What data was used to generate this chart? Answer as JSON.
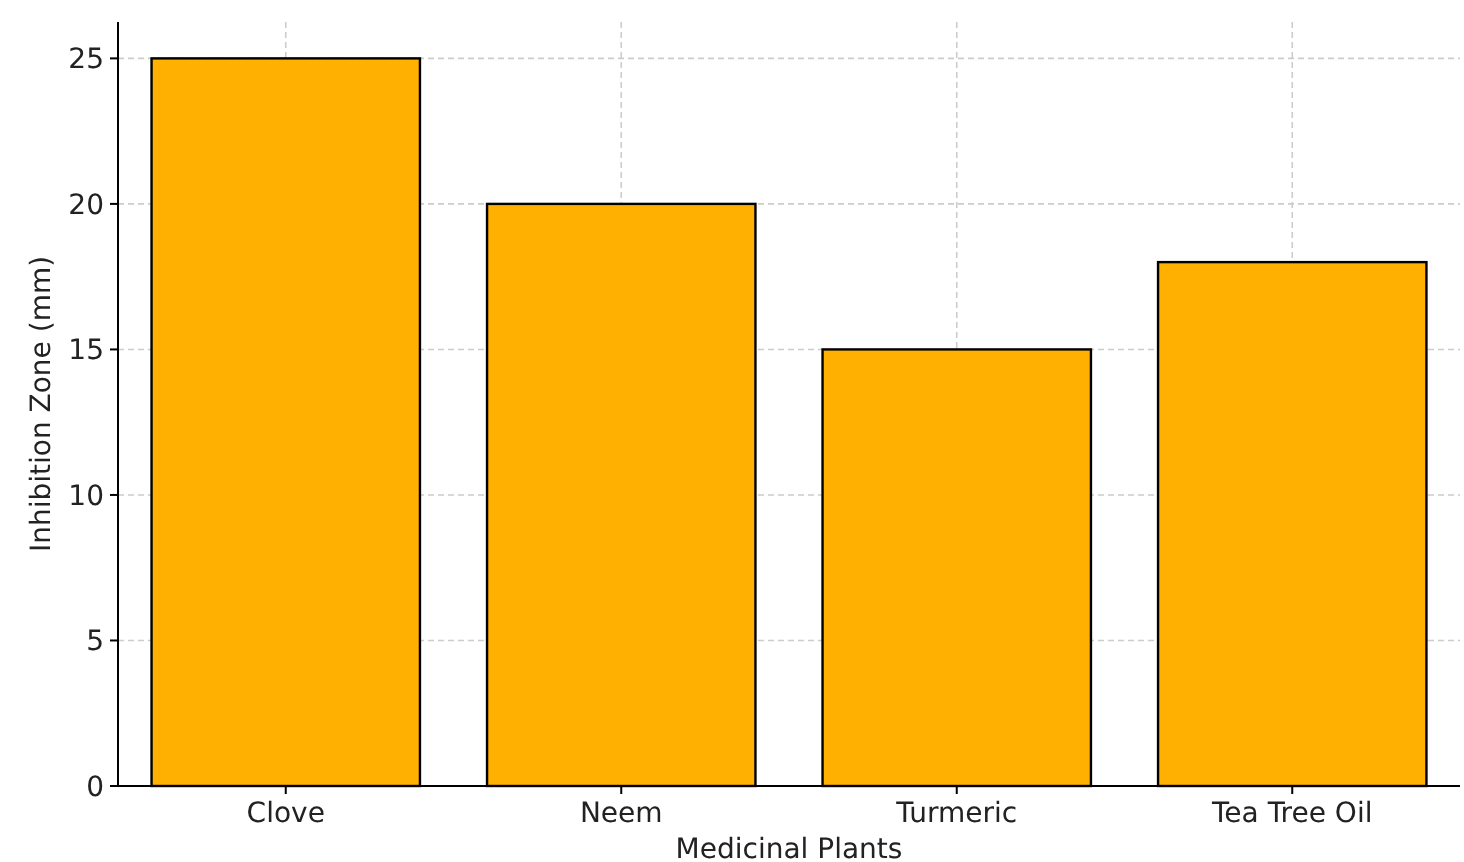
{
  "chart_data": {
    "type": "bar",
    "xlabel": "Medicinal Plants",
    "ylabel": "Inhibition Zone (mm)",
    "categories": [
      "Clove",
      "Neem",
      "Turmeric",
      "Tea Tree Oil"
    ],
    "values": [
      25,
      20,
      15,
      18
    ],
    "color": "#ffb000",
    "ylim": [
      0,
      26.25
    ],
    "yticks": [
      0,
      5,
      10,
      15,
      20,
      25
    ],
    "grid": true
  }
}
